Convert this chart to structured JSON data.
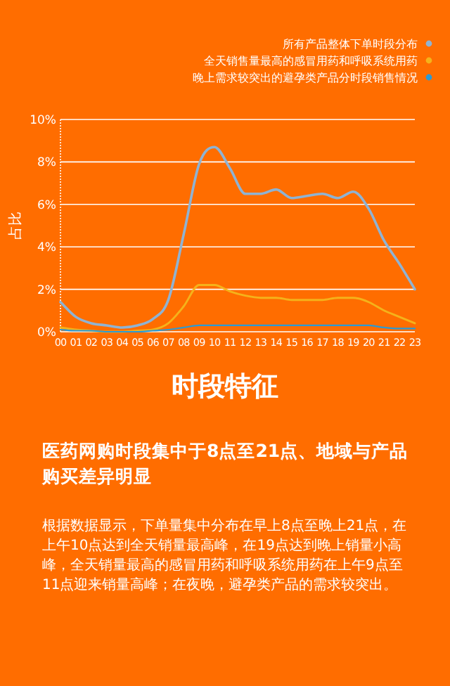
{
  "chart_data": {
    "type": "line",
    "title": "时段特征",
    "subtitle": "医药网购时段集中于8点至21点、地域与产品购买差异明显",
    "ylabel": "占比",
    "annotations": [
      "根据数据显示，下单量集中分布在早上8点至晚上21点，在上午10点达到全天销量最高峰，在19点达到晚上销量小高峰，全天销量最高的感冒用药和呼吸系统用药在上午9点至11点迎来销量高峰；在夜晚，避孕类产品的需求较突出。"
    ],
    "categories": [
      "00",
      "01",
      "02",
      "03",
      "04",
      "05",
      "06",
      "07",
      "08",
      "09",
      "10",
      "11",
      "12",
      "13",
      "14",
      "15",
      "16",
      "17",
      "18",
      "19",
      "20",
      "21",
      "22",
      "23"
    ],
    "series": [
      {
        "name": "所有产品整体下单时段分布",
        "color": "#8fb3d3",
        "values": [
          1.4,
          0.7,
          0.4,
          0.3,
          0.2,
          0.3,
          0.6,
          1.5,
          4.6,
          7.9,
          8.7,
          7.7,
          6.5,
          6.5,
          6.7,
          6.3,
          6.4,
          6.5,
          6.3,
          6.6,
          5.8,
          4.3,
          3.2,
          2.0
        ]
      },
      {
        "name": "全天销售量最高的感冒用药和呼吸系统用药",
        "color": "#f5b21a",
        "values": [
          0.2,
          0.1,
          0.05,
          0.0,
          0.0,
          0.05,
          0.1,
          0.4,
          1.2,
          2.2,
          2.2,
          1.9,
          1.7,
          1.6,
          1.6,
          1.5,
          1.5,
          1.5,
          1.6,
          1.6,
          1.4,
          1.0,
          0.7,
          0.4
        ]
      },
      {
        "name": "晚上需求较突出的避孕类产品分时段销售情况",
        "color": "#2a9ad6",
        "values": [
          0.1,
          0.05,
          0.05,
          0.0,
          0.0,
          0.0,
          0.05,
          0.1,
          0.2,
          0.3,
          0.3,
          0.3,
          0.3,
          0.3,
          0.3,
          0.3,
          0.3,
          0.3,
          0.3,
          0.3,
          0.3,
          0.2,
          0.15,
          0.15
        ]
      }
    ],
    "ylim": [
      0,
      10
    ],
    "yticks": [
      {
        "value": 0,
        "label": "0%"
      },
      {
        "value": 2,
        "label": "2%"
      },
      {
        "value": 4,
        "label": "4%"
      },
      {
        "value": 6,
        "label": "6%"
      },
      {
        "value": 8,
        "label": "8%"
      },
      {
        "value": 10,
        "label": "10%"
      }
    ],
    "grid": "y",
    "legend": "top right"
  }
}
